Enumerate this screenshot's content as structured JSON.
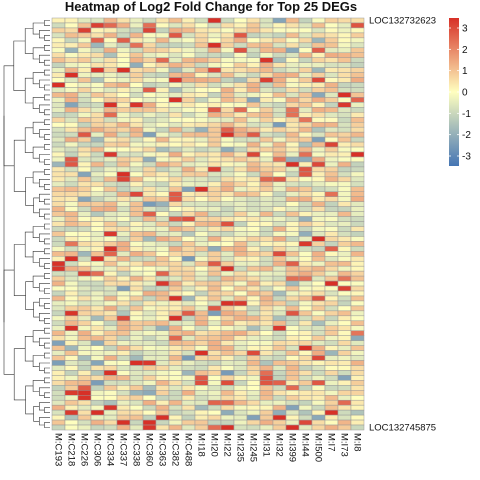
{
  "chart_data": {
    "type": "heatmap",
    "title": "Heatmap of Log2 Fold Change for Top 25 DEGs",
    "columns": [
      "M:C193",
      "M:C218",
      "M:C226",
      "M:C306",
      "M:C334",
      "M:C337",
      "M:C338",
      "M:C360",
      "M:C363",
      "M:C382",
      "M:C488",
      "M:I18",
      "M:I20",
      "M:I22",
      "M:I235",
      "M:I245",
      "M:I31",
      "M:I32",
      "M:I399",
      "M:I44",
      "M:I500",
      "M:I7",
      "M:I73",
      "M:I8"
    ],
    "row_labels_visible_top": "LOC132732623",
    "row_labels_visible_bottom": "LOC132745875",
    "row_count": 83,
    "legend": {
      "ticks": [
        "3",
        "2",
        "1",
        "0",
        "-1",
        "-2",
        "-3"
      ],
      "colors": {
        "high": "#d73027",
        "mid": "#ffffbf",
        "low": "#4575b4"
      }
    },
    "dendrogram": "rows",
    "grid": true
  },
  "colors": {
    "grid": "#9a9a9a",
    "text": "#111111"
  }
}
